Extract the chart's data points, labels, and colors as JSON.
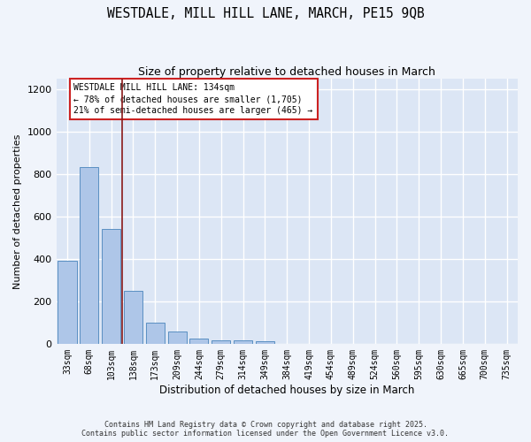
{
  "title_line1": "WESTDALE, MILL HILL LANE, MARCH, PE15 9QB",
  "title_line2": "Size of property relative to detached houses in March",
  "xlabel": "Distribution of detached houses by size in March",
  "ylabel": "Number of detached properties",
  "categories": [
    "33sqm",
    "68sqm",
    "103sqm",
    "138sqm",
    "173sqm",
    "209sqm",
    "244sqm",
    "279sqm",
    "314sqm",
    "349sqm",
    "384sqm",
    "419sqm",
    "454sqm",
    "489sqm",
    "524sqm",
    "560sqm",
    "595sqm",
    "630sqm",
    "665sqm",
    "700sqm",
    "735sqm"
  ],
  "bar_heights": [
    390,
    835,
    540,
    248,
    100,
    57,
    25,
    18,
    15,
    10,
    0,
    0,
    0,
    0,
    0,
    0,
    0,
    0,
    0,
    0,
    0
  ],
  "bar_color": "#aec6e8",
  "bar_edge_color": "#5a8fc2",
  "vline_color": "#8b1a1a",
  "annotation_box_text": "WESTDALE MILL HILL LANE: 134sqm\n← 78% of detached houses are smaller (1,705)\n21% of semi-detached houses are larger (465) →",
  "ylim": [
    0,
    1250
  ],
  "yticks": [
    0,
    200,
    400,
    600,
    800,
    1000,
    1200
  ],
  "background_color": "#dce6f5",
  "fig_background_color": "#f0f4fb",
  "grid_color": "#ffffff",
  "footer_line1": "Contains HM Land Registry data © Crown copyright and database right 2025.",
  "footer_line2": "Contains public sector information licensed under the Open Government Licence v3.0."
}
